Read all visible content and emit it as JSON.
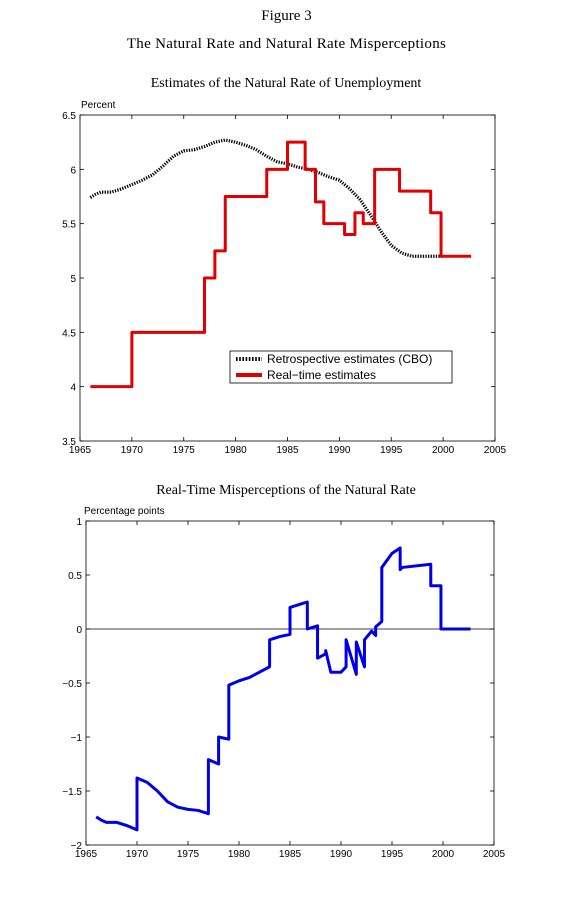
{
  "figure": {
    "label": "Figure 3",
    "title": "The Natural Rate and Natural Rate Misperceptions"
  },
  "chart_data": [
    {
      "type": "line",
      "title": "Estimates of the Natural Rate of Unemployment",
      "ylabel": "Percent",
      "xlabel": "",
      "xlim": [
        1965,
        2005
      ],
      "ylim": [
        3.5,
        6.5
      ],
      "xticks": [
        "1965",
        "1970",
        "1975",
        "1980",
        "1985",
        "1990",
        "1995",
        "2000",
        "2005"
      ],
      "yticks": [
        "3.5",
        "4",
        "4.5",
        "5",
        "5.5",
        "6",
        "6.5"
      ],
      "grid": false,
      "legend": "lower-right",
      "series": [
        {
          "name": "Retrospective estimates (CBO)",
          "style": "dotted",
          "color": "#000000",
          "x": [
            1966,
            1966.5,
            1967,
            1968,
            1969,
            1970,
            1971,
            1972,
            1973,
            1974,
            1975,
            1976,
            1977,
            1978,
            1979,
            1980,
            1981,
            1982,
            1983,
            1984,
            1985,
            1986,
            1987,
            1988,
            1989,
            1990,
            1991,
            1992,
            1993,
            1994,
            1995,
            1996,
            1997,
            1998,
            1999,
            2000
          ],
          "values": [
            5.74,
            5.77,
            5.79,
            5.79,
            5.82,
            5.86,
            5.9,
            5.95,
            6.03,
            6.12,
            6.17,
            6.18,
            6.21,
            6.25,
            6.27,
            6.25,
            6.22,
            6.18,
            6.12,
            6.07,
            6.05,
            6.02,
            6.0,
            5.97,
            5.93,
            5.9,
            5.82,
            5.72,
            5.58,
            5.43,
            5.3,
            5.23,
            5.2,
            5.2,
            5.2,
            5.2
          ]
        },
        {
          "name": "Real−time estimates",
          "style": "solid",
          "color": "#e00000",
          "x": [
            1966,
            1970,
            1970,
            1977,
            1977,
            1978,
            1978,
            1979,
            1979,
            1983,
            1983,
            1985,
            1985,
            1986.7,
            1986.7,
            1987.7,
            1987.7,
            1988.5,
            1988.5,
            1990.5,
            1990.5,
            1991.5,
            1991.5,
            1992.3,
            1992.3,
            1993.4,
            1993.4,
            1995.8,
            1995.8,
            1998.8,
            1998.8,
            1999.8,
            1999.8,
            2002.7
          ],
          "values": [
            4.0,
            4.0,
            4.5,
            4.5,
            5.0,
            5.0,
            5.25,
            5.25,
            5.75,
            5.75,
            6.0,
            6.0,
            6.25,
            6.25,
            6.0,
            6.0,
            5.7,
            5.7,
            5.5,
            5.5,
            5.4,
            5.4,
            5.6,
            5.6,
            5.5,
            5.5,
            6.0,
            6.0,
            5.8,
            5.8,
            5.6,
            5.6,
            5.2,
            5.2
          ]
        }
      ]
    },
    {
      "type": "line",
      "title": "Real-Time Misperceptions of the Natural Rate",
      "ylabel": "Percentage points",
      "xlabel": "",
      "xlim": [
        1965,
        2005
      ],
      "ylim": [
        -2,
        1
      ],
      "xticks": [
        "1965",
        "1970",
        "1975",
        "1980",
        "1985",
        "1990",
        "1995",
        "2000",
        "2005"
      ],
      "yticks": [
        "−2",
        "−1.5",
        "−1",
        "−0.5",
        "0",
        "0.5",
        "1"
      ],
      "grid": false,
      "zero_line": true,
      "series": [
        {
          "name": "",
          "style": "solid",
          "color": "#0000e6",
          "x": [
            1966,
            1966.5,
            1967,
            1968,
            1969,
            1970,
            1970,
            1971,
            1972,
            1973,
            1974,
            1975,
            1976,
            1977,
            1977,
            1978,
            1978,
            1979,
            1979,
            1980,
            1981,
            1982,
            1983,
            1983,
            1984,
            1985,
            1985,
            1986,
            1986.7,
            1986.7,
            1987.7,
            1987.7,
            1988.5,
            1988.5,
            1989,
            1990,
            1990.5,
            1990.5,
            1991.5,
            1991.5,
            1992.3,
            1992.3,
            1993,
            1993.4,
            1993.4,
            1994,
            1994,
            1995,
            1995.8,
            1995.8,
            1996,
            1998.8,
            1998.8,
            1999.8,
            1999.8,
            2002.7
          ],
          "values": [
            -1.74,
            -1.77,
            -1.79,
            -1.79,
            -1.82,
            -1.86,
            -1.38,
            -1.42,
            -1.5,
            -1.6,
            -1.65,
            -1.67,
            -1.68,
            -1.71,
            -1.21,
            -1.25,
            -1.0,
            -1.02,
            -0.52,
            -0.48,
            -0.45,
            -0.4,
            -0.35,
            -0.1,
            -0.07,
            -0.05,
            0.2,
            0.23,
            0.25,
            0.0,
            0.03,
            -0.27,
            -0.23,
            -0.2,
            -0.4,
            -0.4,
            -0.35,
            -0.1,
            -0.42,
            -0.12,
            -0.35,
            -0.1,
            -0.02,
            -0.06,
            0.02,
            0.07,
            0.57,
            0.7,
            0.75,
            0.55,
            0.57,
            0.6,
            0.4,
            0.4,
            0.0,
            0.0
          ]
        }
      ]
    }
  ]
}
